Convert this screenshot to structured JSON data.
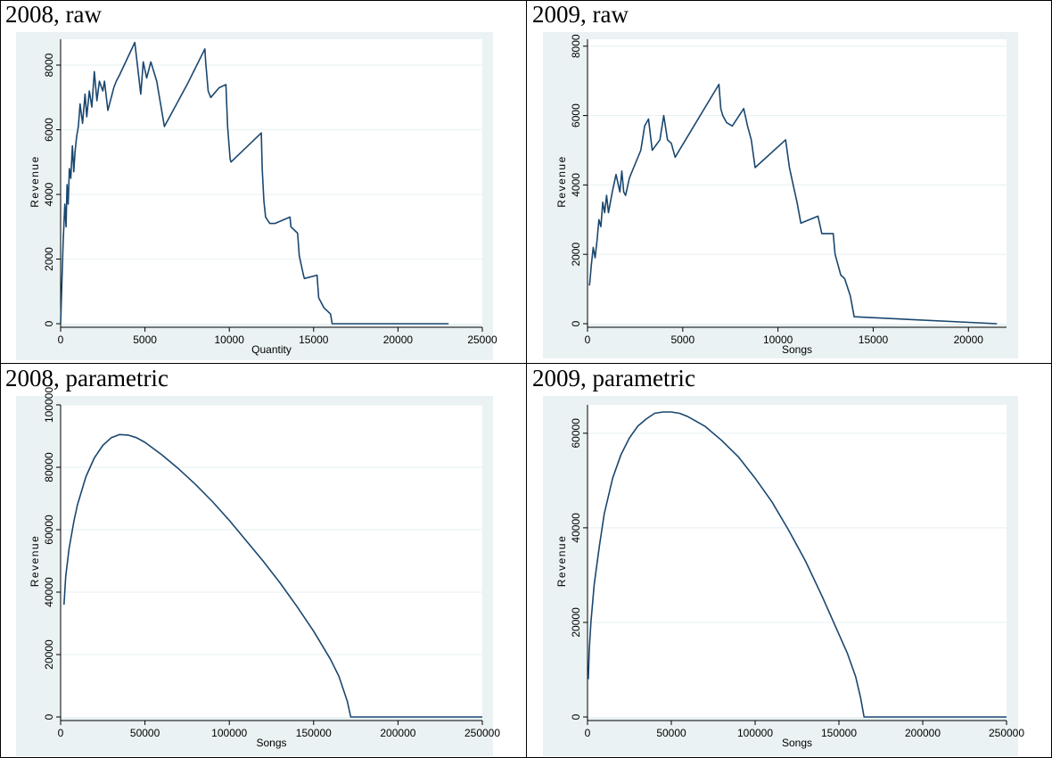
{
  "colors": {
    "panel_bg": "#eaf2f3",
    "plot_bg": "#ffffff",
    "grid": "#eaf2f3",
    "line": "#1a476f",
    "axis": "#000000"
  },
  "chart_data": [
    {
      "panel_title": "2008, raw",
      "type": "line",
      "xlabel": "Quantity",
      "ylabel": "Revenue",
      "xlim": [
        0,
        25000
      ],
      "ylim": [
        0,
        8800
      ],
      "xticks": [
        0,
        5000,
        10000,
        15000,
        20000,
        25000
      ],
      "yticks": [
        0,
        2000,
        4000,
        6000,
        8000
      ],
      "grid": true,
      "series": [
        {
          "x": [
            0,
            150,
            250,
            320,
            380,
            450,
            520,
            600,
            700,
            780,
            850,
            950,
            1050,
            1150,
            1300,
            1450,
            1550,
            1700,
            1850,
            2000,
            2150,
            2300,
            2500,
            2600,
            2800,
            3000,
            3150,
            3300,
            3500,
            4400,
            4750,
            4900,
            5100,
            5350,
            5700,
            6150,
            7500,
            8550,
            8600,
            8750,
            8900,
            9400,
            9800,
            9900,
            10050,
            10100,
            11900,
            11950,
            12050,
            12150,
            12400,
            12700,
            13600,
            13650,
            14050,
            14150,
            14400,
            14450,
            15200,
            15300,
            15600,
            16000,
            16100,
            20000,
            23000
          ],
          "y": [
            0,
            2500,
            3700,
            3000,
            4300,
            3700,
            4800,
            4500,
            5500,
            4700,
            5300,
            5800,
            6100,
            6800,
            6200,
            7100,
            6400,
            7200,
            6700,
            7800,
            6900,
            7500,
            7200,
            7500,
            6600,
            7000,
            7300,
            7500,
            7700,
            8700,
            7100,
            8100,
            7600,
            8100,
            7500,
            6100,
            7400,
            8500,
            8100,
            7200,
            7000,
            7300,
            7400,
            6100,
            5100,
            5000,
            5900,
            4800,
            3800,
            3300,
            3100,
            3100,
            3300,
            3000,
            2800,
            2100,
            1500,
            1400,
            1500,
            800,
            500,
            300,
            0,
            0,
            0
          ]
        }
      ]
    },
    {
      "panel_title": "2009, raw",
      "type": "line",
      "xlabel": "Songs",
      "ylabel": "Revenue",
      "xlim": [
        0,
        22000
      ],
      "ylim": [
        0,
        8200
      ],
      "xticks": [
        0,
        5000,
        10000,
        15000,
        20000
      ],
      "yticks": [
        0,
        2000,
        4000,
        6000,
        8000
      ],
      "grid": true,
      "series": [
        {
          "x": [
            100,
            120,
            200,
            300,
            400,
            500,
            600,
            700,
            800,
            900,
            1000,
            1100,
            1300,
            1500,
            1700,
            1800,
            1900,
            2000,
            2200,
            2500,
            2800,
            3000,
            3200,
            3400,
            3800,
            4000,
            4200,
            4400,
            4600,
            6900,
            7000,
            7100,
            7300,
            7600,
            8200,
            8400,
            8600,
            8800,
            10400,
            10600,
            10800,
            11000,
            11200,
            12100,
            12300,
            12900,
            13000,
            13300,
            13500,
            13800,
            14000,
            21500
          ],
          "y": [
            1100,
            1200,
            1700,
            2200,
            1900,
            2400,
            3000,
            2800,
            3500,
            3200,
            3700,
            3200,
            3800,
            4300,
            3800,
            4400,
            3800,
            3700,
            4200,
            4600,
            5000,
            5700,
            5900,
            5000,
            5300,
            6000,
            5300,
            5200,
            4800,
            6900,
            6200,
            6000,
            5800,
            5700,
            6200,
            5700,
            5300,
            4500,
            5300,
            4500,
            4000,
            3500,
            2900,
            3100,
            2600,
            2600,
            2000,
            1400,
            1300,
            800,
            200,
            0
          ]
        }
      ]
    },
    {
      "panel_title": "2008, parametric",
      "type": "line",
      "xlabel": "Songs",
      "ylabel": "Revenue",
      "xlim": [
        0,
        250000
      ],
      "ylim": [
        0,
        100000
      ],
      "xticks": [
        0,
        50000,
        100000,
        150000,
        200000,
        250000
      ],
      "yticks": [
        0,
        20000,
        40000,
        60000,
        80000,
        100000
      ],
      "grid": true,
      "series": [
        {
          "x": [
            2000,
            3000,
            5000,
            8000,
            10000,
            15000,
            20000,
            25000,
            30000,
            35000,
            40000,
            45000,
            50000,
            60000,
            70000,
            80000,
            90000,
            100000,
            110000,
            120000,
            130000,
            140000,
            150000,
            160000,
            165000,
            170000,
            172000,
            200000,
            250000
          ],
          "y": [
            36000,
            45000,
            54000,
            63000,
            68000,
            77000,
            83000,
            87000,
            89500,
            90500,
            90300,
            89500,
            88000,
            84000,
            79500,
            74500,
            69000,
            63000,
            56500,
            50000,
            43000,
            35500,
            27500,
            18500,
            13000,
            5000,
            0,
            0,
            0
          ]
        }
      ]
    },
    {
      "panel_title": "2009, parametric",
      "type": "line",
      "xlabel": "Songs",
      "ylabel": "Revenue",
      "xlim": [
        0,
        250000
      ],
      "ylim": [
        0,
        66000
      ],
      "xticks": [
        0,
        50000,
        100000,
        150000,
        200000,
        250000
      ],
      "yticks": [
        0,
        20000,
        40000,
        60000
      ],
      "grid": true,
      "series": [
        {
          "x": [
            500,
            1000,
            2000,
            4000,
            7000,
            10000,
            15000,
            20000,
            25000,
            30000,
            35000,
            40000,
            45000,
            50000,
            55000,
            60000,
            70000,
            80000,
            90000,
            100000,
            110000,
            120000,
            130000,
            140000,
            150000,
            155000,
            160000,
            163000,
            165000,
            200000,
            250000
          ],
          "y": [
            8000,
            14000,
            20000,
            28000,
            36000,
            43000,
            50500,
            55500,
            59000,
            61500,
            63000,
            64200,
            64500,
            64500,
            64200,
            63500,
            61500,
            58500,
            55000,
            50500,
            45500,
            39500,
            33000,
            25500,
            17500,
            13500,
            8500,
            4000,
            0,
            0,
            0
          ]
        }
      ]
    }
  ]
}
